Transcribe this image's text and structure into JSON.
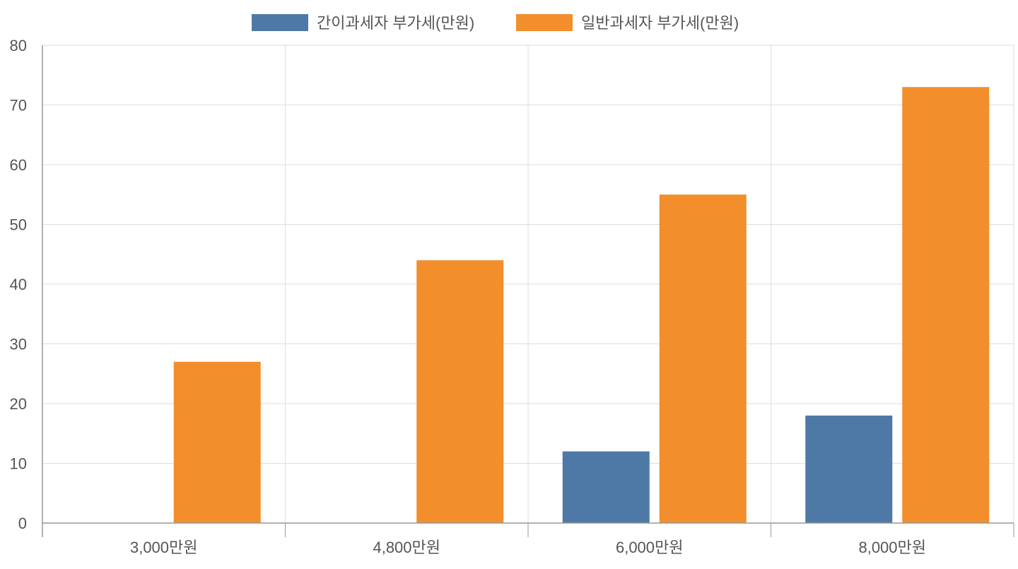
{
  "chart_data": {
    "type": "bar",
    "title": "",
    "xlabel": "",
    "ylabel": "",
    "categories": [
      "3,000만원",
      "4,800만원",
      "6,000만원",
      "8,000만원"
    ],
    "series": [
      {
        "name": "간이과세자 부가세(만원)",
        "values": [
          0,
          0,
          12,
          18
        ],
        "color": "#4e79a7"
      },
      {
        "name": "일반과세자 부가세(만원)",
        "values": [
          27,
          44,
          55,
          73
        ],
        "color": "#f28e2c"
      }
    ],
    "ylim": [
      0,
      80
    ],
    "yticks": [
      0,
      10,
      20,
      30,
      40,
      50,
      60,
      70,
      80
    ],
    "grid": true,
    "legend_position": "top-center"
  }
}
